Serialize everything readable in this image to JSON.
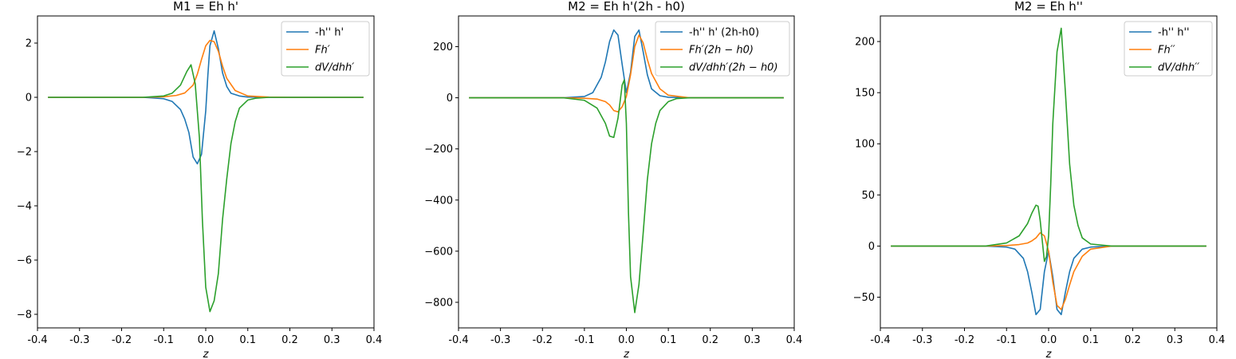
{
  "chart_data": [
    {
      "type": "line",
      "title": "M1 = Eh h'",
      "xlabel": "z",
      "xlim": [
        -0.4,
        0.4
      ],
      "ylim": [
        -8.5,
        3.0
      ],
      "xticks": [
        -0.4,
        -0.3,
        -0.2,
        -0.1,
        0.0,
        0.1,
        0.2,
        0.3,
        0.4
      ],
      "xtick_labels": [
        "-0.4",
        "-0.3",
        "-0.2",
        "-0.1",
        "0.0",
        "0.1",
        "0.2",
        "0.3",
        "0.4"
      ],
      "yticks": [
        -8,
        -6,
        -4,
        -2,
        0,
        2
      ],
      "ytick_labels": [
        "−8",
        "−6",
        "−4",
        "−2",
        "0",
        "2"
      ],
      "legend_position": "top-right",
      "series": [
        {
          "name": "-h'' h'",
          "math": false,
          "color": "#1f77b4",
          "x": [
            -0.375,
            -0.2,
            -0.15,
            -0.1,
            -0.08,
            -0.06,
            -0.05,
            -0.04,
            -0.03,
            -0.02,
            -0.01,
            0.0,
            0.005,
            0.01,
            0.02,
            0.03,
            0.04,
            0.05,
            0.06,
            0.08,
            0.1,
            0.15,
            0.2,
            0.375
          ],
          "y": [
            0,
            0,
            0,
            -0.05,
            -0.15,
            -0.45,
            -0.8,
            -1.3,
            -2.2,
            -2.45,
            -2.1,
            -0.5,
            0.8,
            1.9,
            2.45,
            1.8,
            0.9,
            0.4,
            0.15,
            0.05,
            0.01,
            0,
            0,
            0
          ]
        },
        {
          "name": "Fh′",
          "math": true,
          "color": "#ff7f0e",
          "x": [
            -0.375,
            -0.15,
            -0.1,
            -0.07,
            -0.05,
            -0.03,
            -0.02,
            -0.01,
            0.0,
            0.01,
            0.02,
            0.03,
            0.04,
            0.05,
            0.07,
            0.1,
            0.15,
            0.2,
            0.375
          ],
          "y": [
            0,
            0,
            0.02,
            0.07,
            0.16,
            0.45,
            0.85,
            1.4,
            1.9,
            2.1,
            2.05,
            1.7,
            1.15,
            0.7,
            0.25,
            0.05,
            0.01,
            0,
            0
          ]
        },
        {
          "name": "dV/dhh′",
          "math": true,
          "color": "#2ca02c",
          "x": [
            -0.375,
            -0.15,
            -0.1,
            -0.08,
            -0.06,
            -0.045,
            -0.035,
            -0.025,
            -0.015,
            -0.008,
            0.0,
            0.01,
            0.02,
            0.03,
            0.04,
            0.05,
            0.06,
            0.07,
            0.08,
            0.1,
            0.12,
            0.15,
            0.2,
            0.375
          ],
          "y": [
            0,
            0,
            0.05,
            0.15,
            0.45,
            0.95,
            1.2,
            0.5,
            -1.5,
            -4.5,
            -7.0,
            -7.9,
            -7.5,
            -6.5,
            -4.5,
            -3.0,
            -1.7,
            -0.9,
            -0.4,
            -0.1,
            -0.03,
            0,
            0,
            0
          ]
        }
      ]
    },
    {
      "type": "line",
      "title": "M2 = Eh h'(2h - h0)",
      "xlabel": "z",
      "xlim": [
        -0.4,
        0.4
      ],
      "ylim": [
        -900,
        320
      ],
      "xticks": [
        -0.4,
        -0.3,
        -0.2,
        -0.1,
        0.0,
        0.1,
        0.2,
        0.3,
        0.4
      ],
      "xtick_labels": [
        "-0.4",
        "-0.3",
        "-0.2",
        "-0.1",
        "0.0",
        "0.1",
        "0.2",
        "0.3",
        "0.4"
      ],
      "yticks": [
        -800,
        -600,
        -400,
        -200,
        0,
        200
      ],
      "ytick_labels": [
        "−800",
        "−600",
        "−400",
        "−200",
        "0",
        "200"
      ],
      "legend_position": "top-right",
      "series": [
        {
          "name": "-h'' h' (2h-h0)",
          "math": false,
          "color": "#1f77b4",
          "x": [
            -0.375,
            -0.15,
            -0.1,
            -0.08,
            -0.06,
            -0.05,
            -0.04,
            -0.03,
            -0.02,
            -0.01,
            0.0,
            0.01,
            0.02,
            0.03,
            0.04,
            0.05,
            0.06,
            0.08,
            0.1,
            0.15,
            0.375
          ],
          "y": [
            0,
            0,
            5,
            20,
            80,
            140,
            220,
            265,
            245,
            130,
            20,
            100,
            240,
            265,
            180,
            90,
            35,
            8,
            2,
            0,
            0
          ]
        },
        {
          "name": "Fh′(2h − h0)",
          "math": true,
          "color": "#ff7f0e",
          "x": [
            -0.375,
            -0.15,
            -0.1,
            -0.07,
            -0.05,
            -0.04,
            -0.03,
            -0.02,
            -0.01,
            0.0,
            0.01,
            0.02,
            0.03,
            0.04,
            0.05,
            0.06,
            0.08,
            0.1,
            0.15,
            0.375
          ],
          "y": [
            0,
            0,
            -2,
            -5,
            -15,
            -28,
            -50,
            -55,
            -35,
            5,
            90,
            200,
            245,
            215,
            150,
            95,
            35,
            10,
            0,
            0
          ]
        },
        {
          "name": "dV/dhh′(2h − h0)",
          "math": true,
          "color": "#2ca02c",
          "x": [
            -0.375,
            -0.15,
            -0.1,
            -0.07,
            -0.05,
            -0.04,
            -0.03,
            -0.02,
            -0.01,
            -0.005,
            0.0,
            0.005,
            0.01,
            0.02,
            0.03,
            0.04,
            0.05,
            0.06,
            0.07,
            0.08,
            0.1,
            0.12,
            0.15,
            0.375
          ],
          "y": [
            0,
            0,
            -10,
            -40,
            -100,
            -150,
            -155,
            -80,
            50,
            70,
            -100,
            -450,
            -700,
            -840,
            -730,
            -530,
            -320,
            -180,
            -100,
            -50,
            -15,
            -3,
            0,
            0
          ]
        }
      ]
    },
    {
      "type": "line",
      "title": "M2 = Eh h''",
      "xlabel": "z",
      "xlim": [
        -0.4,
        0.4
      ],
      "ylim": [
        -80,
        225
      ],
      "xticks": [
        -0.4,
        -0.3,
        -0.2,
        -0.1,
        0.0,
        0.1,
        0.2,
        0.3,
        0.4
      ],
      "xtick_labels": [
        "-0.4",
        "-0.3",
        "-0.2",
        "-0.1",
        "0.0",
        "0.1",
        "0.2",
        "0.3",
        "0.4"
      ],
      "yticks": [
        -50,
        0,
        50,
        100,
        150,
        200
      ],
      "ytick_labels": [
        "−50",
        "0",
        "50",
        "100",
        "150",
        "200"
      ],
      "legend_position": "top-right",
      "series": [
        {
          "name": "-h'' h''",
          "math": false,
          "color": "#1f77b4",
          "x": [
            -0.375,
            -0.15,
            -0.1,
            -0.08,
            -0.06,
            -0.05,
            -0.04,
            -0.03,
            -0.02,
            -0.01,
            0.0,
            0.01,
            0.02,
            0.03,
            0.04,
            0.05,
            0.06,
            0.08,
            0.1,
            0.15,
            0.375
          ],
          "y": [
            0,
            0,
            -1,
            -3,
            -12,
            -25,
            -45,
            -67,
            -62,
            -25,
            -5,
            -30,
            -62,
            -67,
            -45,
            -25,
            -12,
            -3,
            -1,
            0,
            0
          ]
        },
        {
          "name": "Fh′′",
          "math": true,
          "color": "#ff7f0e",
          "x": [
            -0.375,
            -0.15,
            -0.1,
            -0.07,
            -0.05,
            -0.04,
            -0.03,
            -0.02,
            -0.01,
            0.0,
            0.01,
            0.02,
            0.03,
            0.04,
            0.05,
            0.06,
            0.08,
            0.1,
            0.15,
            0.375
          ],
          "y": [
            0,
            0,
            0.5,
            1.5,
            3,
            5,
            8,
            13,
            10,
            -5,
            -35,
            -58,
            -62,
            -52,
            -38,
            -25,
            -10,
            -3,
            0,
            0
          ]
        },
        {
          "name": "dV/dhh′′",
          "math": true,
          "color": "#2ca02c",
          "x": [
            -0.375,
            -0.15,
            -0.1,
            -0.07,
            -0.05,
            -0.04,
            -0.03,
            -0.025,
            -0.02,
            -0.01,
            -0.005,
            0.0,
            0.005,
            0.01,
            0.02,
            0.03,
            0.04,
            0.05,
            0.06,
            0.07,
            0.08,
            0.1,
            0.15,
            0.375
          ],
          "y": [
            0,
            0,
            3,
            10,
            22,
            32,
            40,
            39,
            25,
            -15,
            -10,
            10,
            60,
            120,
            190,
            213,
            150,
            80,
            40,
            20,
            8,
            2,
            0,
            0
          ]
        }
      ]
    }
  ]
}
